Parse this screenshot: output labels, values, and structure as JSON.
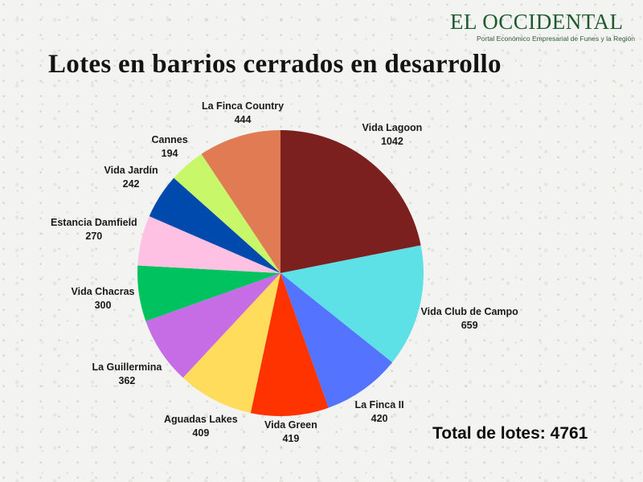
{
  "brand": {
    "name": "EL OCCIDENTAL",
    "tagline": "Portal Económico Empresarial de Funes y la Región"
  },
  "total": {
    "label": "Total de lotes:",
    "value": "4761"
  },
  "chart_data": {
    "type": "pie",
    "title": "Lotes en barrios cerrados en desarrollo",
    "start_angle_deg": 0,
    "direction": "clockwise",
    "legend": "none (labels next to slices)",
    "slices": [
      {
        "name": "Vida Lagoon",
        "value": 1042,
        "color": "#7b1f1f"
      },
      {
        "name": "Vida Club de Campo",
        "value": 659,
        "color": "#5de0e6"
      },
      {
        "name": "La Finca II",
        "value": 420,
        "color": "#5474ff"
      },
      {
        "name": "Vida Green",
        "value": 419,
        "color": "#ff3300"
      },
      {
        "name": "Aguadas Lakes",
        "value": 409,
        "color": "#ffdc5c"
      },
      {
        "name": "La Guillermina",
        "value": 362,
        "color": "#c66de5"
      },
      {
        "name": "Vida Chacras",
        "value": 300,
        "color": "#00c35f"
      },
      {
        "name": "Estancia Damfield",
        "value": 270,
        "color": "#ffc1e3"
      },
      {
        "name": "Vida Jardín",
        "value": 242,
        "color": "#004aad"
      },
      {
        "name": "Cannes",
        "value": 194,
        "color": "#c8f76a"
      },
      {
        "name": "La Finca Country",
        "value": 444,
        "color": "#e07b53"
      }
    ]
  }
}
